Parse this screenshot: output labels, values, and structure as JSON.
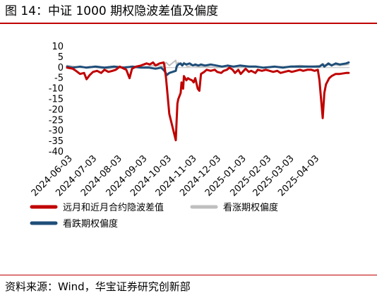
{
  "header": {
    "title": "图 14：中证 1000 期权隐波差值及偏度"
  },
  "footer": {
    "source": "资料来源：Wind，华宝证券研究创新部"
  },
  "chart_data": {
    "type": "line",
    "ylim": [
      -40,
      10
    ],
    "yticks": [
      10,
      5,
      0,
      -5,
      -10,
      -15,
      -20,
      -25,
      -30,
      -35,
      -40
    ],
    "xticks": [
      "2024-06-03",
      "2024-07-03",
      "2024-08-03",
      "2024-09-03",
      "2024-10-03",
      "2024-11-03",
      "2024-12-03",
      "2025-01-03",
      "2025-02-03",
      "2025-03-03",
      "2025-04-03"
    ],
    "x_start": "2024-05-27",
    "x_end": "2025-05-10",
    "legend_position": "bottom",
    "series": [
      {
        "name": "远月和近月合约隐波差值",
        "color": "#c00000",
        "points": [
          [
            "2024-05-27",
            0.0
          ],
          [
            "2024-06-03",
            -0.5
          ],
          [
            "2024-06-07",
            -1.5
          ],
          [
            "2024-06-12",
            -3.0
          ],
          [
            "2024-06-17",
            -2.5
          ],
          [
            "2024-06-20",
            -5.5
          ],
          [
            "2024-06-24",
            -3.5
          ],
          [
            "2024-06-28",
            -2.0
          ],
          [
            "2024-07-03",
            -1.5
          ],
          [
            "2024-07-08",
            -2.5
          ],
          [
            "2024-07-12",
            -1.0
          ],
          [
            "2024-07-17",
            -2.0
          ],
          [
            "2024-07-22",
            -1.5
          ],
          [
            "2024-07-26",
            -1.0
          ],
          [
            "2024-07-31",
            0.5
          ],
          [
            "2024-08-05",
            -0.5
          ],
          [
            "2024-08-08",
            -1.0
          ],
          [
            "2024-08-12",
            -5.0
          ],
          [
            "2024-08-15",
            -0.5
          ],
          [
            "2024-08-20",
            0.5
          ],
          [
            "2024-08-26",
            1.0
          ],
          [
            "2024-09-02",
            2.0
          ],
          [
            "2024-09-06",
            1.5
          ],
          [
            "2024-09-10",
            2.5
          ],
          [
            "2024-09-13",
            1.0
          ],
          [
            "2024-09-18",
            2.0
          ],
          [
            "2024-09-23",
            2.5
          ],
          [
            "2024-09-24",
            1.0
          ],
          [
            "2024-09-26",
            -5.0
          ],
          [
            "2024-09-30",
            -22.0
          ],
          [
            "2024-10-08",
            -34.5
          ],
          [
            "2024-10-09",
            -25.0
          ],
          [
            "2024-10-10",
            -17.0
          ],
          [
            "2024-10-11",
            -15.0
          ],
          [
            "2024-10-14",
            -12.0
          ],
          [
            "2024-10-15",
            -7.0
          ],
          [
            "2024-10-17",
            -10.0
          ],
          [
            "2024-10-18",
            -4.0
          ],
          [
            "2024-10-21",
            -6.0
          ],
          [
            "2024-10-23",
            -5.0
          ],
          [
            "2024-10-25",
            -5.5
          ],
          [
            "2024-10-28",
            -6.0
          ],
          [
            "2024-10-30",
            -7.0
          ],
          [
            "2024-11-01",
            -5.0
          ],
          [
            "2024-11-04",
            -10.0
          ],
          [
            "2024-11-06",
            -11.0
          ],
          [
            "2024-11-08",
            -3.0
          ],
          [
            "2024-11-12",
            -2.0
          ],
          [
            "2024-11-15",
            -1.0
          ],
          [
            "2024-11-20",
            -1.5
          ],
          [
            "2024-11-25",
            -1.0
          ],
          [
            "2024-11-28",
            -2.0
          ],
          [
            "2024-12-03",
            -2.5
          ],
          [
            "2024-12-06",
            -1.5
          ],
          [
            "2024-12-10",
            -1.0
          ],
          [
            "2024-12-13",
            0.0
          ],
          [
            "2024-12-17",
            -1.0
          ],
          [
            "2024-12-20",
            -2.5
          ],
          [
            "2024-12-24",
            -1.0
          ],
          [
            "2024-12-27",
            -3.0
          ],
          [
            "2025-01-02",
            -0.5
          ],
          [
            "2025-01-06",
            -2.0
          ],
          [
            "2025-01-09",
            -1.5
          ],
          [
            "2025-01-14",
            -2.5
          ],
          [
            "2025-01-17",
            -1.0
          ],
          [
            "2025-01-22",
            -1.5
          ],
          [
            "2025-01-27",
            -1.0
          ],
          [
            "2025-02-05",
            -2.0
          ],
          [
            "2025-02-10",
            -1.5
          ],
          [
            "2025-02-14",
            -2.5
          ],
          [
            "2025-02-19",
            -2.0
          ],
          [
            "2025-02-24",
            -1.5
          ],
          [
            "2025-02-28",
            -2.0
          ],
          [
            "2025-03-05",
            -1.5
          ],
          [
            "2025-03-10",
            -1.0
          ],
          [
            "2025-03-14",
            -1.5
          ],
          [
            "2025-03-19",
            -1.0
          ],
          [
            "2025-03-24",
            -1.0
          ],
          [
            "2025-03-28",
            -1.5
          ],
          [
            "2025-04-01",
            -1.0
          ],
          [
            "2025-04-03",
            -6.0
          ],
          [
            "2025-04-07",
            -24.0
          ],
          [
            "2025-04-09",
            -12.0
          ],
          [
            "2025-04-11",
            -8.0
          ],
          [
            "2025-04-15",
            -5.0
          ],
          [
            "2025-04-18",
            -4.0
          ],
          [
            "2025-04-23",
            -3.0
          ],
          [
            "2025-04-28",
            -3.0
          ],
          [
            "2025-05-06",
            -2.5
          ],
          [
            "2025-05-09",
            -2.5
          ]
        ]
      },
      {
        "name": "看涨期权偏度",
        "color": "#bfbfbf",
        "points": [
          [
            "2024-05-27",
            1.0
          ],
          [
            "2024-06-05",
            0.5
          ],
          [
            "2024-06-14",
            0.0
          ],
          [
            "2024-06-24",
            0.5
          ],
          [
            "2024-07-03",
            0.0
          ],
          [
            "2024-07-15",
            -0.5
          ],
          [
            "2024-07-26",
            0.0
          ],
          [
            "2024-08-08",
            0.5
          ],
          [
            "2024-08-20",
            0.0
          ],
          [
            "2024-09-02",
            0.5
          ],
          [
            "2024-09-13",
            1.0
          ],
          [
            "2024-09-23",
            0.5
          ],
          [
            "2024-09-26",
            2.5
          ],
          [
            "2024-09-30",
            1.0
          ],
          [
            "2024-10-08",
            3.5
          ],
          [
            "2024-10-09",
            1.0
          ],
          [
            "2024-10-11",
            2.5
          ],
          [
            "2024-10-15",
            1.0
          ],
          [
            "2024-10-18",
            2.5
          ],
          [
            "2024-10-22",
            0.5
          ],
          [
            "2024-10-28",
            1.0
          ],
          [
            "2024-11-05",
            0.5
          ],
          [
            "2024-11-15",
            0.5
          ],
          [
            "2024-11-28",
            0.0
          ],
          [
            "2024-12-10",
            0.5
          ],
          [
            "2024-12-24",
            0.0
          ],
          [
            "2025-01-08",
            0.5
          ],
          [
            "2025-01-22",
            0.0
          ],
          [
            "2025-02-10",
            0.5
          ],
          [
            "2025-02-24",
            0.5
          ],
          [
            "2025-03-10",
            1.0
          ],
          [
            "2025-03-24",
            0.5
          ],
          [
            "2025-04-03",
            1.0
          ],
          [
            "2025-04-07",
            2.0
          ],
          [
            "2025-04-11",
            1.0
          ],
          [
            "2025-04-18",
            1.5
          ],
          [
            "2025-04-28",
            1.0
          ],
          [
            "2025-05-09",
            1.5
          ]
        ]
      },
      {
        "name": "看跌期权偏度",
        "color": "#1f4e79",
        "points": [
          [
            "2024-05-27",
            0.5
          ],
          [
            "2024-06-03",
            0.0
          ],
          [
            "2024-06-12",
            0.5
          ],
          [
            "2024-06-20",
            0.0
          ],
          [
            "2024-07-01",
            0.5
          ],
          [
            "2024-07-12",
            0.0
          ],
          [
            "2024-07-24",
            0.5
          ],
          [
            "2024-08-05",
            0.0
          ],
          [
            "2024-08-15",
            0.5
          ],
          [
            "2024-08-26",
            0.0
          ],
          [
            "2024-09-05",
            0.0
          ],
          [
            "2024-09-13",
            -0.5
          ],
          [
            "2024-09-20",
            0.0
          ],
          [
            "2024-09-24",
            -1.5
          ],
          [
            "2024-09-27",
            -3.5
          ],
          [
            "2024-09-30",
            -2.5
          ],
          [
            "2024-10-08",
            -1.5
          ],
          [
            "2024-10-09",
            0.5
          ],
          [
            "2024-10-11",
            1.5
          ],
          [
            "2024-10-14",
            2.0
          ],
          [
            "2024-10-16",
            1.0
          ],
          [
            "2024-10-18",
            2.0
          ],
          [
            "2024-10-21",
            1.5
          ],
          [
            "2024-10-25",
            2.0
          ],
          [
            "2024-10-29",
            1.0
          ],
          [
            "2024-11-01",
            1.5
          ],
          [
            "2024-11-05",
            1.0
          ],
          [
            "2024-11-08",
            1.5
          ],
          [
            "2024-11-13",
            1.0
          ],
          [
            "2024-11-20",
            1.5
          ],
          [
            "2024-11-27",
            1.0
          ],
          [
            "2024-12-04",
            0.5
          ],
          [
            "2024-12-11",
            1.0
          ],
          [
            "2024-12-18",
            0.5
          ],
          [
            "2024-12-26",
            1.0
          ],
          [
            "2025-01-06",
            0.5
          ],
          [
            "2025-01-15",
            0.5
          ],
          [
            "2025-01-24",
            0.0
          ],
          [
            "2025-02-07",
            0.5
          ],
          [
            "2025-02-17",
            0.0
          ],
          [
            "2025-02-26",
            0.5
          ],
          [
            "2025-03-07",
            0.5
          ],
          [
            "2025-03-17",
            0.5
          ],
          [
            "2025-03-27",
            0.5
          ],
          [
            "2025-04-03",
            0.5
          ],
          [
            "2025-04-07",
            1.5
          ],
          [
            "2025-04-09",
            0.5
          ],
          [
            "2025-04-14",
            2.0
          ],
          [
            "2025-04-18",
            1.0
          ],
          [
            "2025-04-23",
            2.0
          ],
          [
            "2025-04-28",
            1.5
          ],
          [
            "2025-05-06",
            2.0
          ],
          [
            "2025-05-09",
            2.5
          ]
        ]
      }
    ]
  }
}
